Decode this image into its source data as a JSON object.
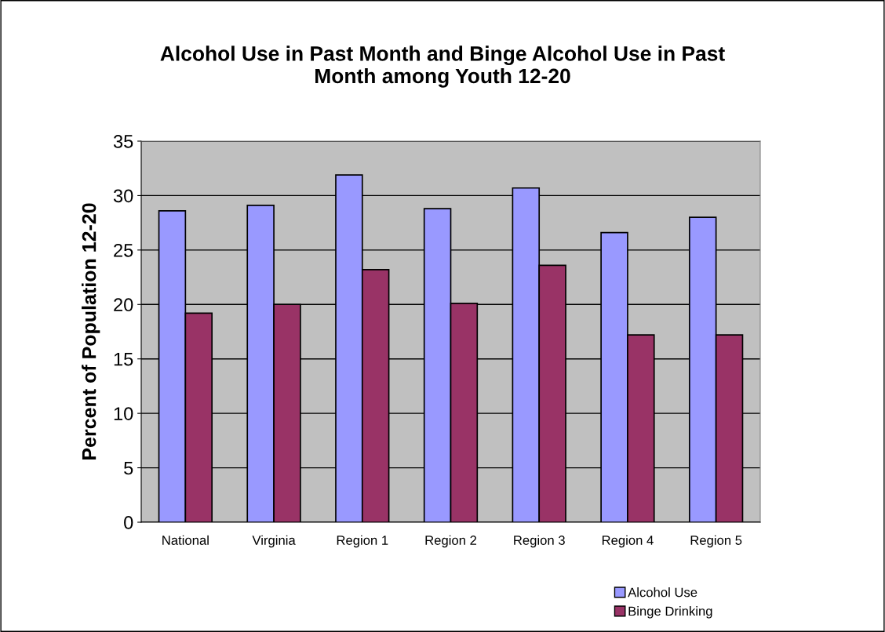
{
  "chart_data": {
    "type": "bar",
    "title": "Alcohol Use in Past Month and Binge Alcohol Use in Past\nMonth among Youth 12-20",
    "ylabel": "Percent of Population 12-20",
    "categories": [
      "National",
      "Virginia",
      "Region 1",
      "Region 2",
      "Region 3",
      "Region 4",
      "Region 5"
    ],
    "series": [
      {
        "name": "Alcohol Use",
        "color": "#9999ff",
        "values": [
          28.6,
          29.1,
          31.9,
          28.8,
          30.7,
          26.6,
          28.0
        ]
      },
      {
        "name": "Binge Drinking",
        "color": "#993366",
        "values": [
          19.2,
          20.0,
          23.2,
          20.1,
          23.6,
          17.2,
          17.2
        ]
      }
    ],
    "ylim": [
      0,
      35
    ],
    "yticks": [
      0,
      5,
      10,
      15,
      20,
      25,
      30,
      35
    ],
    "grid": "y",
    "legend": "bottom right"
  }
}
